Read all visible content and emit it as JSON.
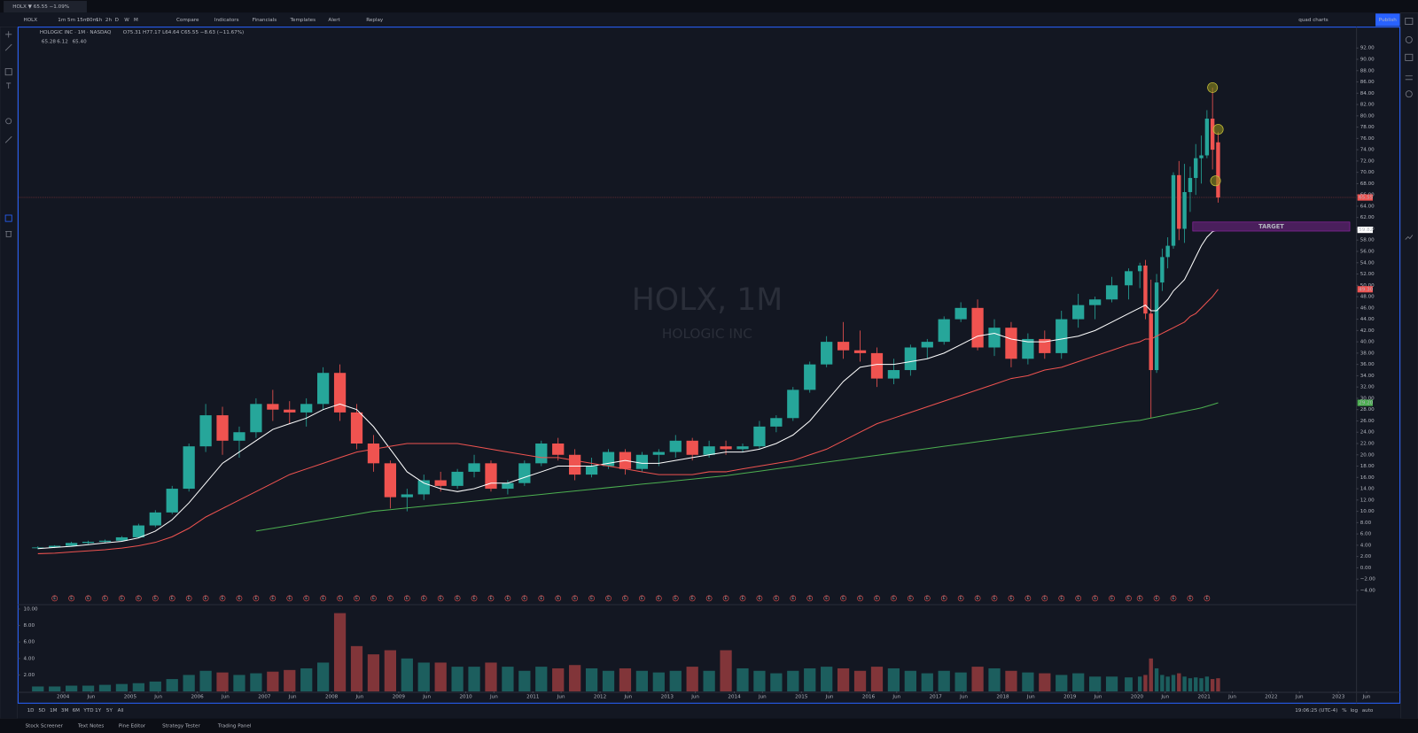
{
  "tab": "HOLX ▼ 65.55 −1.09%",
  "toolbar": {
    "symbol": "HOLX",
    "intervals": [
      "1m",
      "5m",
      "15m",
      "30m",
      "1h",
      "2h",
      "D",
      "W",
      "M"
    ],
    "buttons": [
      "Compare",
      "Indicators",
      "Financials",
      "Templates",
      "Alert",
      "Replay"
    ],
    "layout": "quad charts",
    "publish": "Publish"
  },
  "chart_data": {
    "type": "candlestick",
    "title": "HOLOGIC INC · 1M · NASDAQ",
    "ohlc_legend": "O75.31 H77.17 L64.64 C65.55 −8.63 (−11.67%)",
    "indicator_legend": [
      "65.28",
      "6.12",
      "65.40"
    ],
    "watermark": [
      "HOLX, 1M",
      "HOLOGIC INC"
    ],
    "colors": {
      "up": "#26a69a",
      "down": "#ef5350"
    },
    "x": [
      2003.625,
      2003.875,
      2004.125,
      2004.375,
      2004.625,
      2004.875,
      2005.125,
      2005.375,
      2005.625,
      2005.875,
      2006.125,
      2006.375,
      2006.625,
      2006.875,
      2007.125,
      2007.375,
      2007.625,
      2007.875,
      2008.125,
      2008.375,
      2008.625,
      2008.875,
      2009.125,
      2009.375,
      2009.625,
      2009.875,
      2010.125,
      2010.375,
      2010.625,
      2010.875,
      2011.125,
      2011.375,
      2011.625,
      2011.875,
      2012.125,
      2012.375,
      2012.625,
      2012.875,
      2013.125,
      2013.375,
      2013.625,
      2013.875,
      2014.125,
      2014.375,
      2014.625,
      2014.875,
      2015.125,
      2015.375,
      2015.625,
      2015.875,
      2016.125,
      2016.375,
      2016.625,
      2016.875,
      2017.125,
      2017.375,
      2017.625,
      2017.875,
      2018.125,
      2018.375,
      2018.625,
      2018.875,
      2019.125,
      2019.375,
      2019.625,
      2019.875,
      2020.042,
      2020.125,
      2020.208,
      2020.292,
      2020.375,
      2020.458,
      2020.542,
      2020.625,
      2020.708,
      2020.792,
      2020.875,
      2020.958,
      2021.042,
      2021.125,
      2021.208
    ],
    "candles": [
      [
        3.5,
        3.8,
        3.3,
        3.6
      ],
      [
        3.6,
        4.0,
        3.5,
        3.9
      ],
      [
        3.9,
        4.6,
        3.8,
        4.4
      ],
      [
        4.4,
        4.8,
        4.2,
        4.6
      ],
      [
        4.6,
        5.0,
        4.3,
        4.8
      ],
      [
        4.8,
        5.6,
        4.7,
        5.4
      ],
      [
        5.4,
        7.8,
        5.3,
        7.5
      ],
      [
        7.5,
        10.2,
        7.2,
        9.8
      ],
      [
        9.8,
        14.5,
        9.5,
        14.0
      ],
      [
        14.0,
        22.0,
        13.5,
        21.5
      ],
      [
        21.5,
        29.0,
        20.5,
        27.0
      ],
      [
        27.0,
        28.5,
        20.0,
        22.5
      ],
      [
        22.5,
        25.0,
        19.5,
        24.0
      ],
      [
        24.0,
        30.0,
        23.0,
        29.0
      ],
      [
        29,
        31.5,
        26,
        28
      ],
      [
        28,
        29.5,
        25.5,
        27.5
      ],
      [
        27.5,
        30,
        25,
        29
      ],
      [
        29,
        35.5,
        28,
        34.5
      ],
      [
        34.5,
        36,
        26,
        27.5
      ],
      [
        27.5,
        29,
        21,
        22
      ],
      [
        22,
        23.5,
        17,
        18.5
      ],
      [
        18.5,
        19,
        10.5,
        12.5
      ],
      [
        12.5,
        14,
        10,
        13
      ],
      [
        13,
        16.5,
        12,
        15.5
      ],
      [
        15.5,
        17,
        13.5,
        14.5
      ],
      [
        14.5,
        17.5,
        14,
        17
      ],
      [
        17,
        20,
        16,
        18.5
      ],
      [
        18.5,
        19,
        13.5,
        14
      ],
      [
        14,
        15.5,
        13,
        15
      ],
      [
        15,
        19,
        14.5,
        18.5
      ],
      [
        18.5,
        22.5,
        18,
        22
      ],
      [
        22,
        23,
        19,
        20
      ],
      [
        20,
        21,
        15.5,
        16.5
      ],
      [
        16.5,
        19.5,
        16,
        18
      ],
      [
        18,
        21,
        17.5,
        20.5
      ],
      [
        20.5,
        21,
        16.5,
        17.5
      ],
      [
        17.5,
        20.5,
        17,
        20
      ],
      [
        20,
        21,
        18,
        20.5
      ],
      [
        20.5,
        23.5,
        19.5,
        22.5
      ],
      [
        22.5,
        23,
        19,
        20
      ],
      [
        20,
        22.5,
        19.5,
        21.5
      ],
      [
        21.5,
        22.5,
        20,
        21
      ],
      [
        21,
        22,
        20.5,
        21.5
      ],
      [
        21.5,
        26,
        21,
        25
      ],
      [
        25,
        27,
        24,
        26.5
      ],
      [
        26.5,
        32,
        26,
        31.5
      ],
      [
        31.5,
        36.5,
        31,
        36
      ],
      [
        36,
        41,
        35.5,
        40
      ],
      [
        40,
        43.5,
        37,
        38.5
      ],
      [
        38.5,
        42,
        36.5,
        38
      ],
      [
        38,
        39,
        32,
        33.5
      ],
      [
        33.5,
        37,
        32.5,
        35
      ],
      [
        35,
        39.5,
        34,
        39
      ],
      [
        39,
        40.5,
        37,
        40
      ],
      [
        40,
        44.5,
        39.5,
        44
      ],
      [
        44,
        47,
        43.5,
        46
      ],
      [
        46,
        47.5,
        38.5,
        39
      ],
      [
        39,
        44,
        37.5,
        42.5
      ],
      [
        42.5,
        43.5,
        35.5,
        37
      ],
      [
        37,
        41.5,
        36,
        40.5
      ],
      [
        40.5,
        42,
        37,
        38
      ],
      [
        38,
        45.5,
        37,
        44
      ],
      [
        44,
        48.5,
        42.5,
        46.5
      ],
      [
        46.5,
        48,
        44,
        47.5
      ],
      [
        47.5,
        51.5,
        47,
        50
      ],
      [
        50,
        53,
        47.5,
        52.5
      ],
      [
        52.5,
        54,
        49.5,
        53.5
      ],
      [
        53.5,
        54.5,
        44,
        45
      ],
      [
        45,
        51,
        26.5,
        35
      ],
      [
        35,
        52,
        34.5,
        50.5
      ],
      [
        50.5,
        56.5,
        49,
        55
      ],
      [
        55,
        58.5,
        53,
        57
      ],
      [
        57,
        70,
        56.5,
        69.5
      ],
      [
        69.5,
        72,
        58,
        60
      ],
      [
        60,
        71.5,
        57.5,
        66.5
      ],
      [
        66.5,
        71,
        63,
        69
      ],
      [
        69,
        75,
        66,
        72.5
      ],
      [
        72.5,
        76.5,
        68,
        73
      ],
      [
        73,
        81,
        72.5,
        79.5
      ],
      [
        79.5,
        85,
        70.5,
        74
      ],
      [
        75.31,
        77.17,
        64.64,
        65.55
      ]
    ],
    "volume": [
      0.6,
      0.6,
      0.7,
      0.7,
      0.8,
      0.9,
      1.0,
      1.2,
      1.5,
      2.0,
      2.5,
      2.3,
      2.0,
      2.2,
      2.4,
      2.6,
      2.8,
      3.5,
      9.5,
      5.5,
      4.5,
      5.0,
      4.0,
      3.5,
      3.5,
      3.0,
      3.0,
      3.5,
      3.0,
      2.5,
      3.0,
      2.8,
      3.2,
      2.8,
      2.5,
      2.8,
      2.5,
      2.3,
      2.5,
      3.0,
      2.5,
      5.0,
      2.8,
      2.5,
      2.2,
      2.5,
      2.8,
      3.0,
      2.8,
      2.5,
      3.0,
      2.8,
      2.5,
      2.2,
      2.5,
      2.3,
      3.0,
      2.8,
      2.5,
      2.3,
      2.2,
      2.0,
      2.2,
      1.8,
      1.8,
      1.7,
      1.8,
      2.0,
      4.0,
      2.8,
      2.0,
      1.8,
      2.0,
      2.2,
      1.8,
      1.6,
      1.7,
      1.6,
      1.8,
      1.5,
      1.6
    ],
    "series": [
      {
        "name": "MA fast",
        "color": "#ffffff",
        "values": [
          3.4,
          3.6,
          3.8,
          4.1,
          4.4,
          4.7,
          5.3,
          6.5,
          8.5,
          11.5,
          15,
          18.5,
          20.5,
          22.5,
          24.5,
          25.5,
          26.5,
          28,
          29,
          28,
          25,
          21,
          17,
          15,
          14,
          13.5,
          14,
          15,
          15,
          16,
          17,
          18,
          18,
          18,
          18.5,
          19,
          18.5,
          18.5,
          19,
          19.5,
          20,
          20.5,
          20.5,
          21,
          22,
          23.5,
          26,
          29.5,
          33,
          35.5,
          36,
          36,
          36.5,
          37,
          38,
          39.5,
          41,
          41.5,
          40.5,
          40,
          40,
          40.5,
          41,
          42,
          43.5,
          45,
          46,
          46.5,
          45.5,
          45.5,
          46.5,
          47.5,
          49,
          50,
          51,
          53,
          55,
          57,
          58.5,
          59.5,
          59.82
        ]
      },
      {
        "name": "MA mid",
        "color": "#ef5350",
        "values": [
          2.5,
          2.6,
          2.8,
          3.0,
          3.2,
          3.5,
          3.9,
          4.5,
          5.5,
          7,
          9,
          10.5,
          12,
          13.5,
          15,
          16.5,
          17.5,
          18.5,
          19.5,
          20.5,
          21,
          21.5,
          22,
          22,
          22,
          22,
          21.5,
          21,
          20.5,
          20,
          19.5,
          19.5,
          19,
          18.5,
          18,
          17.5,
          17,
          16.5,
          16.5,
          16.5,
          17,
          17,
          17.5,
          18,
          18.5,
          19,
          20,
          21,
          22.5,
          24,
          25.5,
          26.5,
          27.5,
          28.5,
          29.5,
          30.5,
          31.5,
          32.5,
          33.5,
          34,
          35,
          35.5,
          36.5,
          37.5,
          38.5,
          39.5,
          40,
          40.5,
          40.5,
          41,
          41.5,
          42,
          42.5,
          43,
          43.5,
          44.5,
          45,
          46,
          47,
          48,
          49.3
        ]
      },
      {
        "name": "MA slow",
        "color": "#4caf50",
        "values": [
          null,
          null,
          null,
          null,
          null,
          null,
          null,
          null,
          null,
          null,
          null,
          null,
          null,
          6.5,
          7,
          7.5,
          8,
          8.5,
          9,
          9.5,
          10,
          10.3,
          10.6,
          10.9,
          11.2,
          11.5,
          11.8,
          12.1,
          12.4,
          12.7,
          13,
          13.3,
          13.6,
          13.9,
          14.2,
          14.5,
          14.8,
          15.1,
          15.4,
          15.7,
          16,
          16.3,
          16.7,
          17.1,
          17.5,
          17.9,
          18.3,
          18.7,
          19.1,
          19.5,
          19.9,
          20.3,
          20.7,
          21.1,
          21.5,
          21.9,
          22.3,
          22.7,
          23.1,
          23.5,
          23.9,
          24.3,
          24.7,
          25.1,
          25.5,
          25.9,
          26.1,
          26.3,
          26.5,
          26.7,
          26.9,
          27.1,
          27.3,
          27.5,
          27.7,
          27.9,
          28.1,
          28.3,
          28.6,
          28.9,
          29.2
        ]
      }
    ],
    "price_labels": [
      {
        "value": 65.55,
        "label": "65.55",
        "color": "#ef5350"
      },
      {
        "value": 59.82,
        "label": "59.82",
        "color": "#ffffff"
      },
      {
        "value": 49.3,
        "label": "49.30",
        "color": "#ef5350"
      },
      {
        "value": 29.2,
        "label": "29.20",
        "color": "#4caf50"
      }
    ],
    "target": {
      "label": "TARGET",
      "x": [
        2020.83,
        2023.17
      ],
      "y": [
        59.6,
        61.2
      ]
    },
    "circles": [
      {
        "x": 2021.125,
        "y": 85
      },
      {
        "x": 2021.21,
        "y": 77.6
      },
      {
        "x": 2021.17,
        "y": 68.5
      }
    ],
    "earnings_label": "E",
    "xlim": [
      2003.33,
      2023.27
    ],
    "ylim": [
      -4.6,
      94.1
    ],
    "vol_ylim": [
      0,
      10.2
    ],
    "yticks": [
      {
        "value": -4,
        "label": "−4.00"
      },
      {
        "value": -2,
        "label": "−2.00"
      },
      {
        "value": 0,
        "label": "0.00"
      },
      {
        "value": 2,
        "label": "2.00"
      },
      {
        "value": 4,
        "label": "4.00"
      },
      {
        "value": 6,
        "label": "6.00"
      },
      {
        "value": 8,
        "label": "8.00"
      },
      {
        "value": 10,
        "label": "10.00"
      },
      {
        "value": 12,
        "label": "12.00"
      },
      {
        "value": 14,
        "label": "14.00"
      },
      {
        "value": 16,
        "label": "16.00"
      },
      {
        "value": 18,
        "label": "18.00"
      },
      {
        "value": 20,
        "label": "20.00"
      },
      {
        "value": 22,
        "label": "22.00"
      },
      {
        "value": 24,
        "label": "24.00"
      },
      {
        "value": 26,
        "label": "26.00"
      },
      {
        "value": 28,
        "label": "28.00"
      },
      {
        "value": 30,
        "label": "30.00"
      },
      {
        "value": 32,
        "label": "32.00"
      },
      {
        "value": 34,
        "label": "34.00"
      },
      {
        "value": 36,
        "label": "36.00"
      },
      {
        "value": 38,
        "label": "38.00"
      },
      {
        "value": 40,
        "label": "40.00"
      },
      {
        "value": 42,
        "label": "42.00"
      },
      {
        "value": 44,
        "label": "44.00"
      },
      {
        "value": 46,
        "label": "46.00"
      },
      {
        "value": 48,
        "label": "48.00"
      },
      {
        "value": 50,
        "label": "50.00"
      },
      {
        "value": 52,
        "label": "52.00"
      },
      {
        "value": 54,
        "label": "54.00"
      },
      {
        "value": 56,
        "label": "56.00"
      },
      {
        "value": 58,
        "label": "58.00"
      },
      {
        "value": 60,
        "label": "60.00"
      },
      {
        "value": 62,
        "label": "62.00"
      },
      {
        "value": 64,
        "label": "64.00"
      },
      {
        "value": 66,
        "label": "66.00"
      },
      {
        "value": 68,
        "label": "68.00"
      },
      {
        "value": 70,
        "label": "70.00"
      },
      {
        "value": 72,
        "label": "72.00"
      },
      {
        "value": 74,
        "label": "74.00"
      },
      {
        "value": 76,
        "label": "76.00"
      },
      {
        "value": 78,
        "label": "78.00"
      },
      {
        "value": 80,
        "label": "80.00"
      },
      {
        "value": 82,
        "label": "82.00"
      },
      {
        "value": 84,
        "label": "84.00"
      },
      {
        "value": 86,
        "label": "86.00"
      },
      {
        "value": 88,
        "label": "88.00"
      },
      {
        "value": 90,
        "label": "90.00"
      },
      {
        "value": 92,
        "label": "92.00"
      }
    ],
    "vol_yticks": [
      {
        "value": 2,
        "label": "2.00"
      },
      {
        "value": 4,
        "label": "4.00"
      },
      {
        "value": 6,
        "label": "6.00"
      },
      {
        "value": 8,
        "label": "8.00"
      },
      {
        "value": 10,
        "label": "10.00"
      }
    ],
    "xticks": [
      2004,
      {
        "value": 2004.42,
        "label": "Jun"
      },
      2005,
      {
        "value": 2005.42,
        "label": "Jun"
      },
      2006,
      {
        "value": 2006.42,
        "label": "Jun"
      },
      2007,
      {
        "value": 2007.42,
        "label": "Jun"
      },
      2008,
      {
        "value": 2008.42,
        "label": "Jun"
      },
      2009,
      {
        "value": 2009.42,
        "label": "Jun"
      },
      2010,
      {
        "value": 2010.42,
        "label": "Jun"
      },
      2011,
      {
        "value": 2011.42,
        "label": "Jun"
      },
      2012,
      {
        "value": 2012.42,
        "label": "Jun"
      },
      2013,
      {
        "value": 2013.42,
        "label": "Jun"
      },
      2014,
      {
        "value": 2014.42,
        "label": "Jun"
      },
      2015,
      {
        "value": 2015.42,
        "label": "Jun"
      },
      2016,
      {
        "value": 2016.42,
        "label": "Jun"
      },
      2017,
      {
        "value": 2017.42,
        "label": "Jun"
      },
      2018,
      {
        "value": 2018.42,
        "label": "Jun"
      },
      2019,
      {
        "value": 2019.42,
        "label": "Jun"
      },
      2020,
      {
        "value": 2020.42,
        "label": "Jun"
      },
      2021,
      {
        "value": 2021.42,
        "label": "Jun"
      },
      2022,
      {
        "value": 2022.42,
        "label": "Jun"
      },
      2023,
      {
        "value": 2023.42,
        "label": "Jun"
      }
    ],
    "grid": false
  },
  "ranges": [
    "1D",
    "5D",
    "1M",
    "3M",
    "6M",
    "YTD",
    "1Y",
    "5Y",
    "All"
  ],
  "status": {
    "time": "19:06:25 (UTC-4)",
    "percent": "%",
    "log": "log",
    "auto": "auto"
  },
  "bottom_tabs": [
    "Stock Screener",
    "Text Notes",
    "Pine Editor",
    "Strategy Tester",
    "Trading Panel"
  ]
}
